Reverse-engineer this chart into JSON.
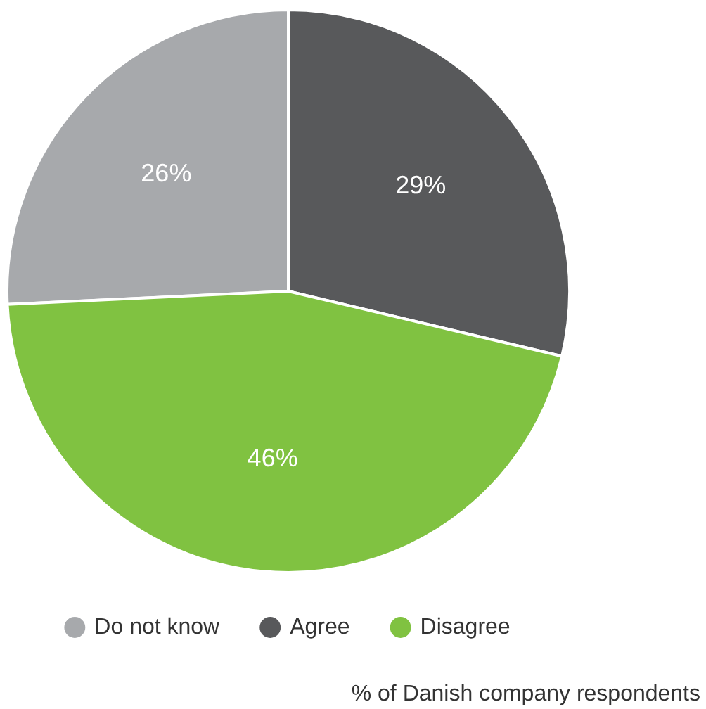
{
  "chart_data": {
    "type": "pie",
    "categories": [
      "Do not know",
      "Agree",
      "Disagree"
    ],
    "values": [
      26,
      29,
      46
    ],
    "colors": [
      "#a7a9ac",
      "#58595b",
      "#80c241"
    ],
    "value_labels": [
      "26%",
      "29%",
      "46%"
    ],
    "legend": "bottom",
    "annotations": [
      "% of Danish company respondents"
    ]
  }
}
